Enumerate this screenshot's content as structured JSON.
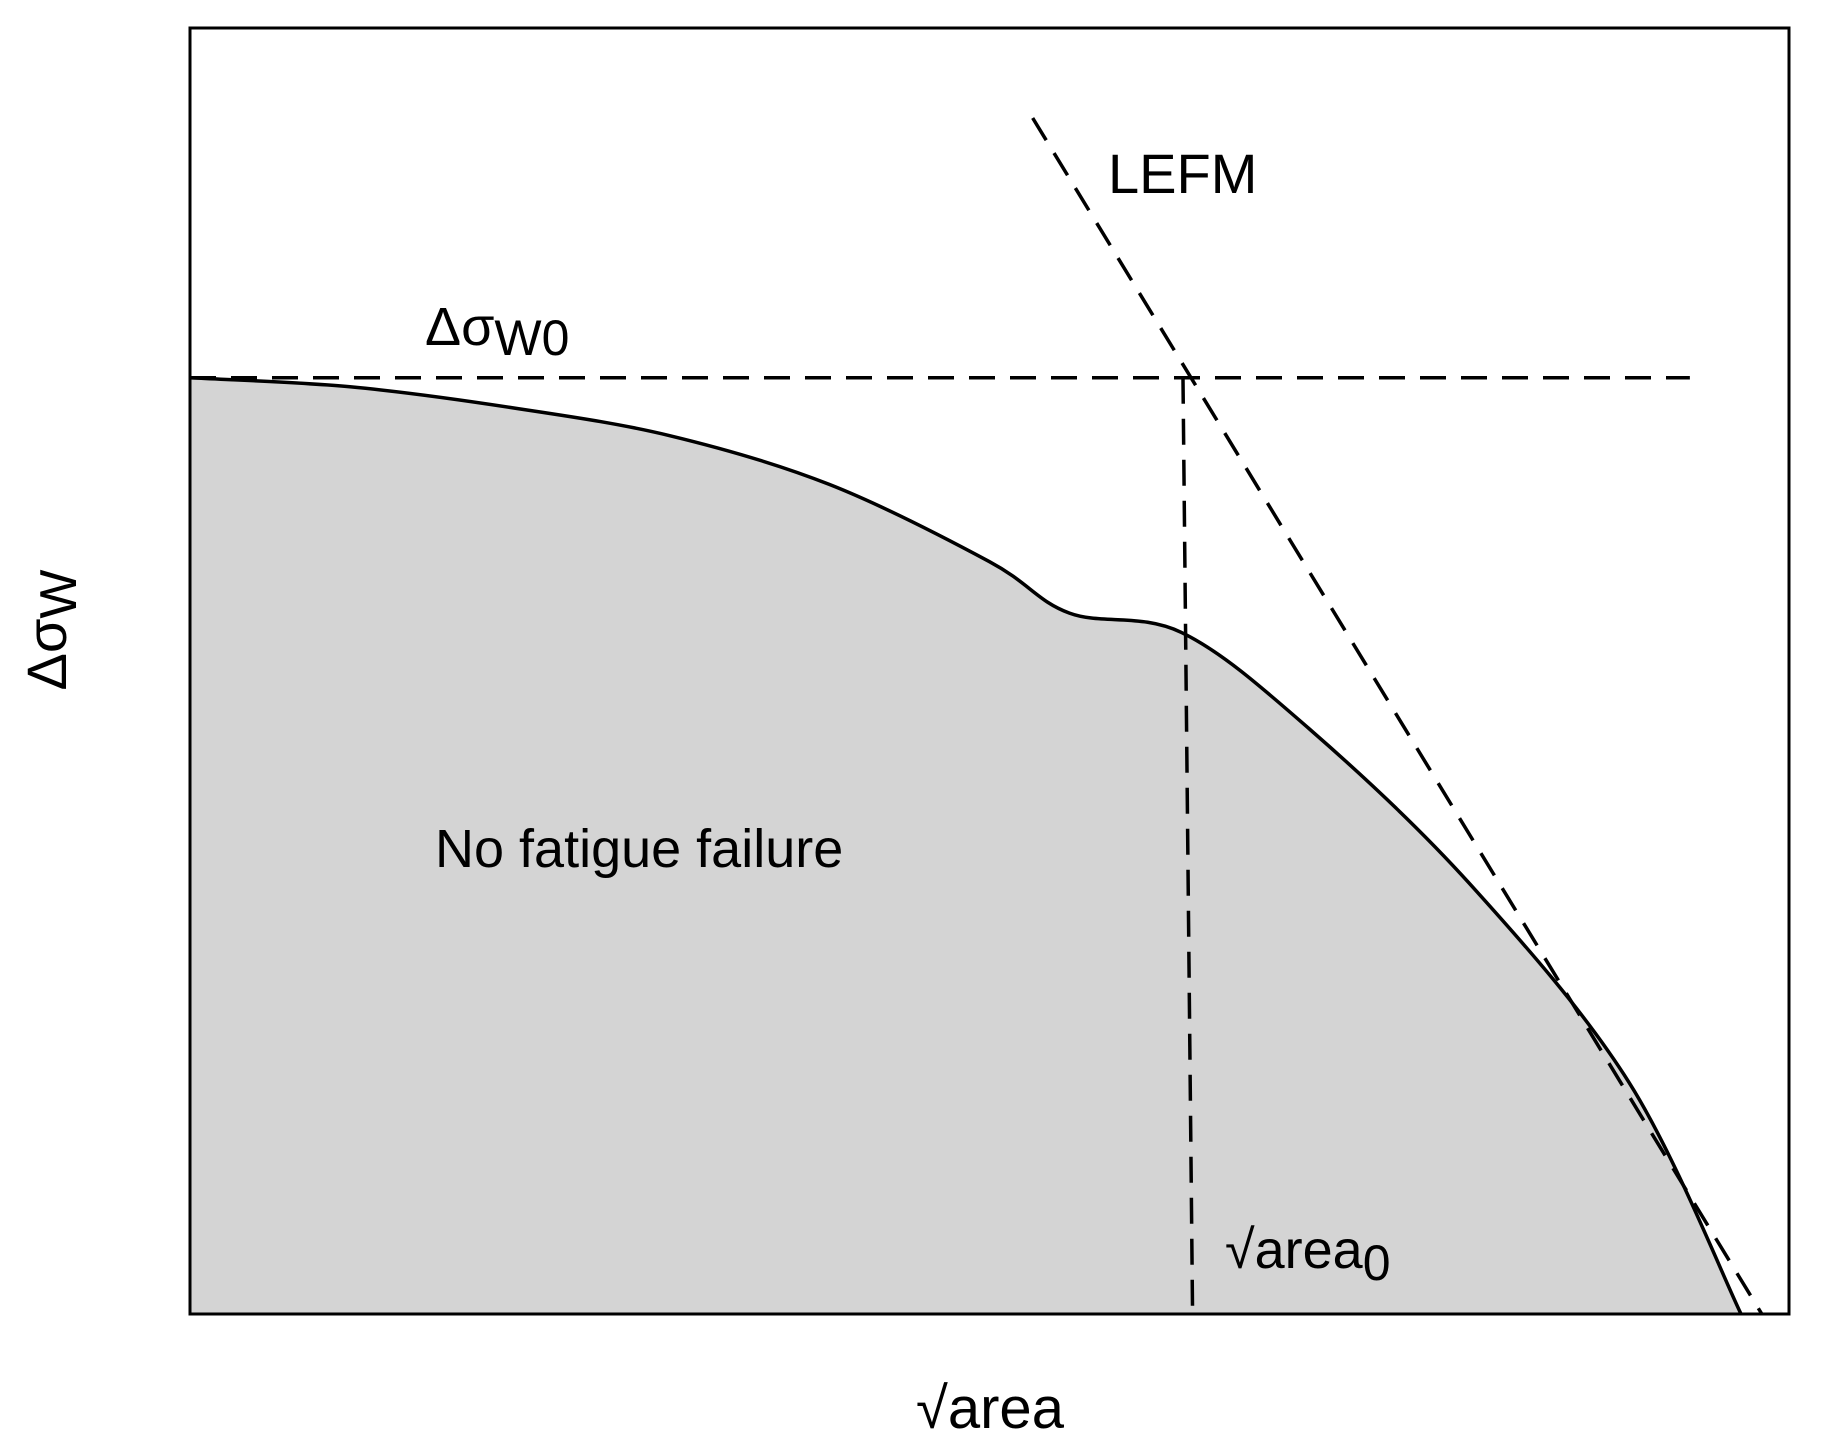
{
  "chart_data": {
    "type": "line",
    "title": "",
    "xlabel": "√area",
    "ylabel": "Δσ",
    "ylabel_sub": "W",
    "xlim": [
      0,
      1
    ],
    "ylim": [
      0,
      1
    ],
    "grid": false,
    "legend": "none",
    "series": [
      {
        "style": "solid",
        "points": [
          [
            0.0,
            0.728
          ],
          [
            0.1,
            0.721
          ],
          [
            0.2,
            0.705
          ],
          [
            0.3,
            0.683
          ],
          [
            0.4,
            0.645
          ],
          [
            0.5,
            0.585
          ],
          [
            0.55,
            0.545
          ],
          [
            0.62,
            0.53
          ],
          [
            0.7,
            0.455
          ],
          [
            0.8,
            0.335
          ],
          [
            0.9,
            0.18
          ],
          [
            0.97,
            0.0
          ]
        ]
      },
      {
        "name": "LEFM",
        "style": "dashed",
        "points": [
          [
            0.527,
            0.93
          ],
          [
            0.983,
            0.0
          ]
        ]
      },
      {
        "style": "dashed",
        "points": [
          [
            0.0,
            0.728
          ],
          [
            0.938,
            0.728
          ]
        ]
      },
      {
        "style": "dashed",
        "points": [
          [
            0.621,
            0.728
          ],
          [
            0.627,
            0.0
          ]
        ]
      }
    ],
    "annotations": {
      "lefm": "LEFM",
      "sigma0_main": "Δσ",
      "sigma0_sub": "W0",
      "region": "No fatigue failure",
      "area0_main": "√area",
      "area0_sub": "0"
    },
    "colors": {
      "shade": "#d4d4d4",
      "line": "#000000"
    }
  }
}
